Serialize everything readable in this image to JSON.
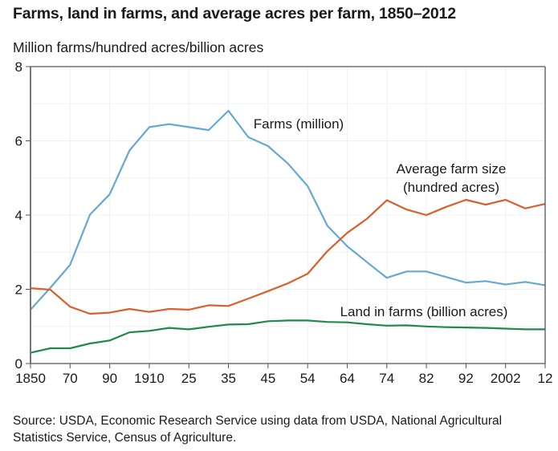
{
  "chart_data": {
    "type": "line",
    "title": "Farms, land in farms, and average acres per farm, 1850–2012",
    "ylabel": "Million farms/hundred acres/billion acres",
    "xlabel": "",
    "ylim": [
      0,
      8
    ],
    "yticks": [
      "0",
      "2",
      "4",
      "6",
      "8"
    ],
    "ytick_values": [
      0,
      2,
      4,
      6,
      8
    ],
    "grid": true,
    "x": [
      1850,
      1860,
      1870,
      1880,
      1890,
      1900,
      1910,
      1920,
      1925,
      1930,
      1935,
      1940,
      1945,
      1950,
      1954,
      1959,
      1964,
      1969,
      1974,
      1978,
      1982,
      1987,
      1992,
      1997,
      2002,
      2007,
      2012
    ],
    "xtick_labels": [
      "1850",
      "70",
      "90",
      "1910",
      "25",
      "35",
      "45",
      "54",
      "64",
      "74",
      "82",
      "92",
      "2002",
      "12"
    ],
    "xtick_indices": [
      0,
      2,
      4,
      6,
      8,
      10,
      12,
      14,
      16,
      18,
      20,
      22,
      24,
      26
    ],
    "series": [
      {
        "name": "Farms (million)",
        "color": "#64a9d2",
        "values": [
          1.45,
          2.04,
          2.66,
          4.01,
          4.56,
          5.74,
          6.37,
          6.45,
          6.37,
          6.29,
          6.81,
          6.1,
          5.86,
          5.39,
          4.78,
          3.71,
          3.16,
          2.73,
          2.31,
          2.48,
          2.48,
          2.33,
          2.18,
          2.22,
          2.13,
          2.2,
          2.11
        ]
      },
      {
        "name": "Average farm size (hundred acres)",
        "color": "#d95f2c",
        "values": [
          2.03,
          1.99,
          1.53,
          1.34,
          1.37,
          1.47,
          1.39,
          1.47,
          1.45,
          1.57,
          1.55,
          1.75,
          1.95,
          2.16,
          2.42,
          3.03,
          3.52,
          3.9,
          4.4,
          4.15,
          4.0,
          4.22,
          4.41,
          4.28,
          4.41,
          4.18,
          4.3
        ]
      },
      {
        "name": "Land in farms (billion acres)",
        "color": "#1f8a4b",
        "values": [
          0.29,
          0.41,
          0.41,
          0.54,
          0.62,
          0.84,
          0.88,
          0.96,
          0.92,
          0.99,
          1.05,
          1.06,
          1.14,
          1.16,
          1.16,
          1.12,
          1.11,
          1.06,
          1.02,
          1.03,
          1.0,
          0.98,
          0.97,
          0.96,
          0.94,
          0.92,
          0.92
        ]
      }
    ],
    "annotations": [
      {
        "series": 0,
        "lines": [
          "Farms (million)"
        ]
      },
      {
        "series": 1,
        "lines": [
          "Average farm size",
          "(hundred acres)"
        ]
      },
      {
        "series": 2,
        "lines": [
          "Land in farms (billion acres)"
        ]
      }
    ],
    "legend": "none (direct labels)"
  },
  "source": "Source: USDA, Economic Research Service using data from USDA, National Agricultural Statistics Service, Census of Agriculture."
}
